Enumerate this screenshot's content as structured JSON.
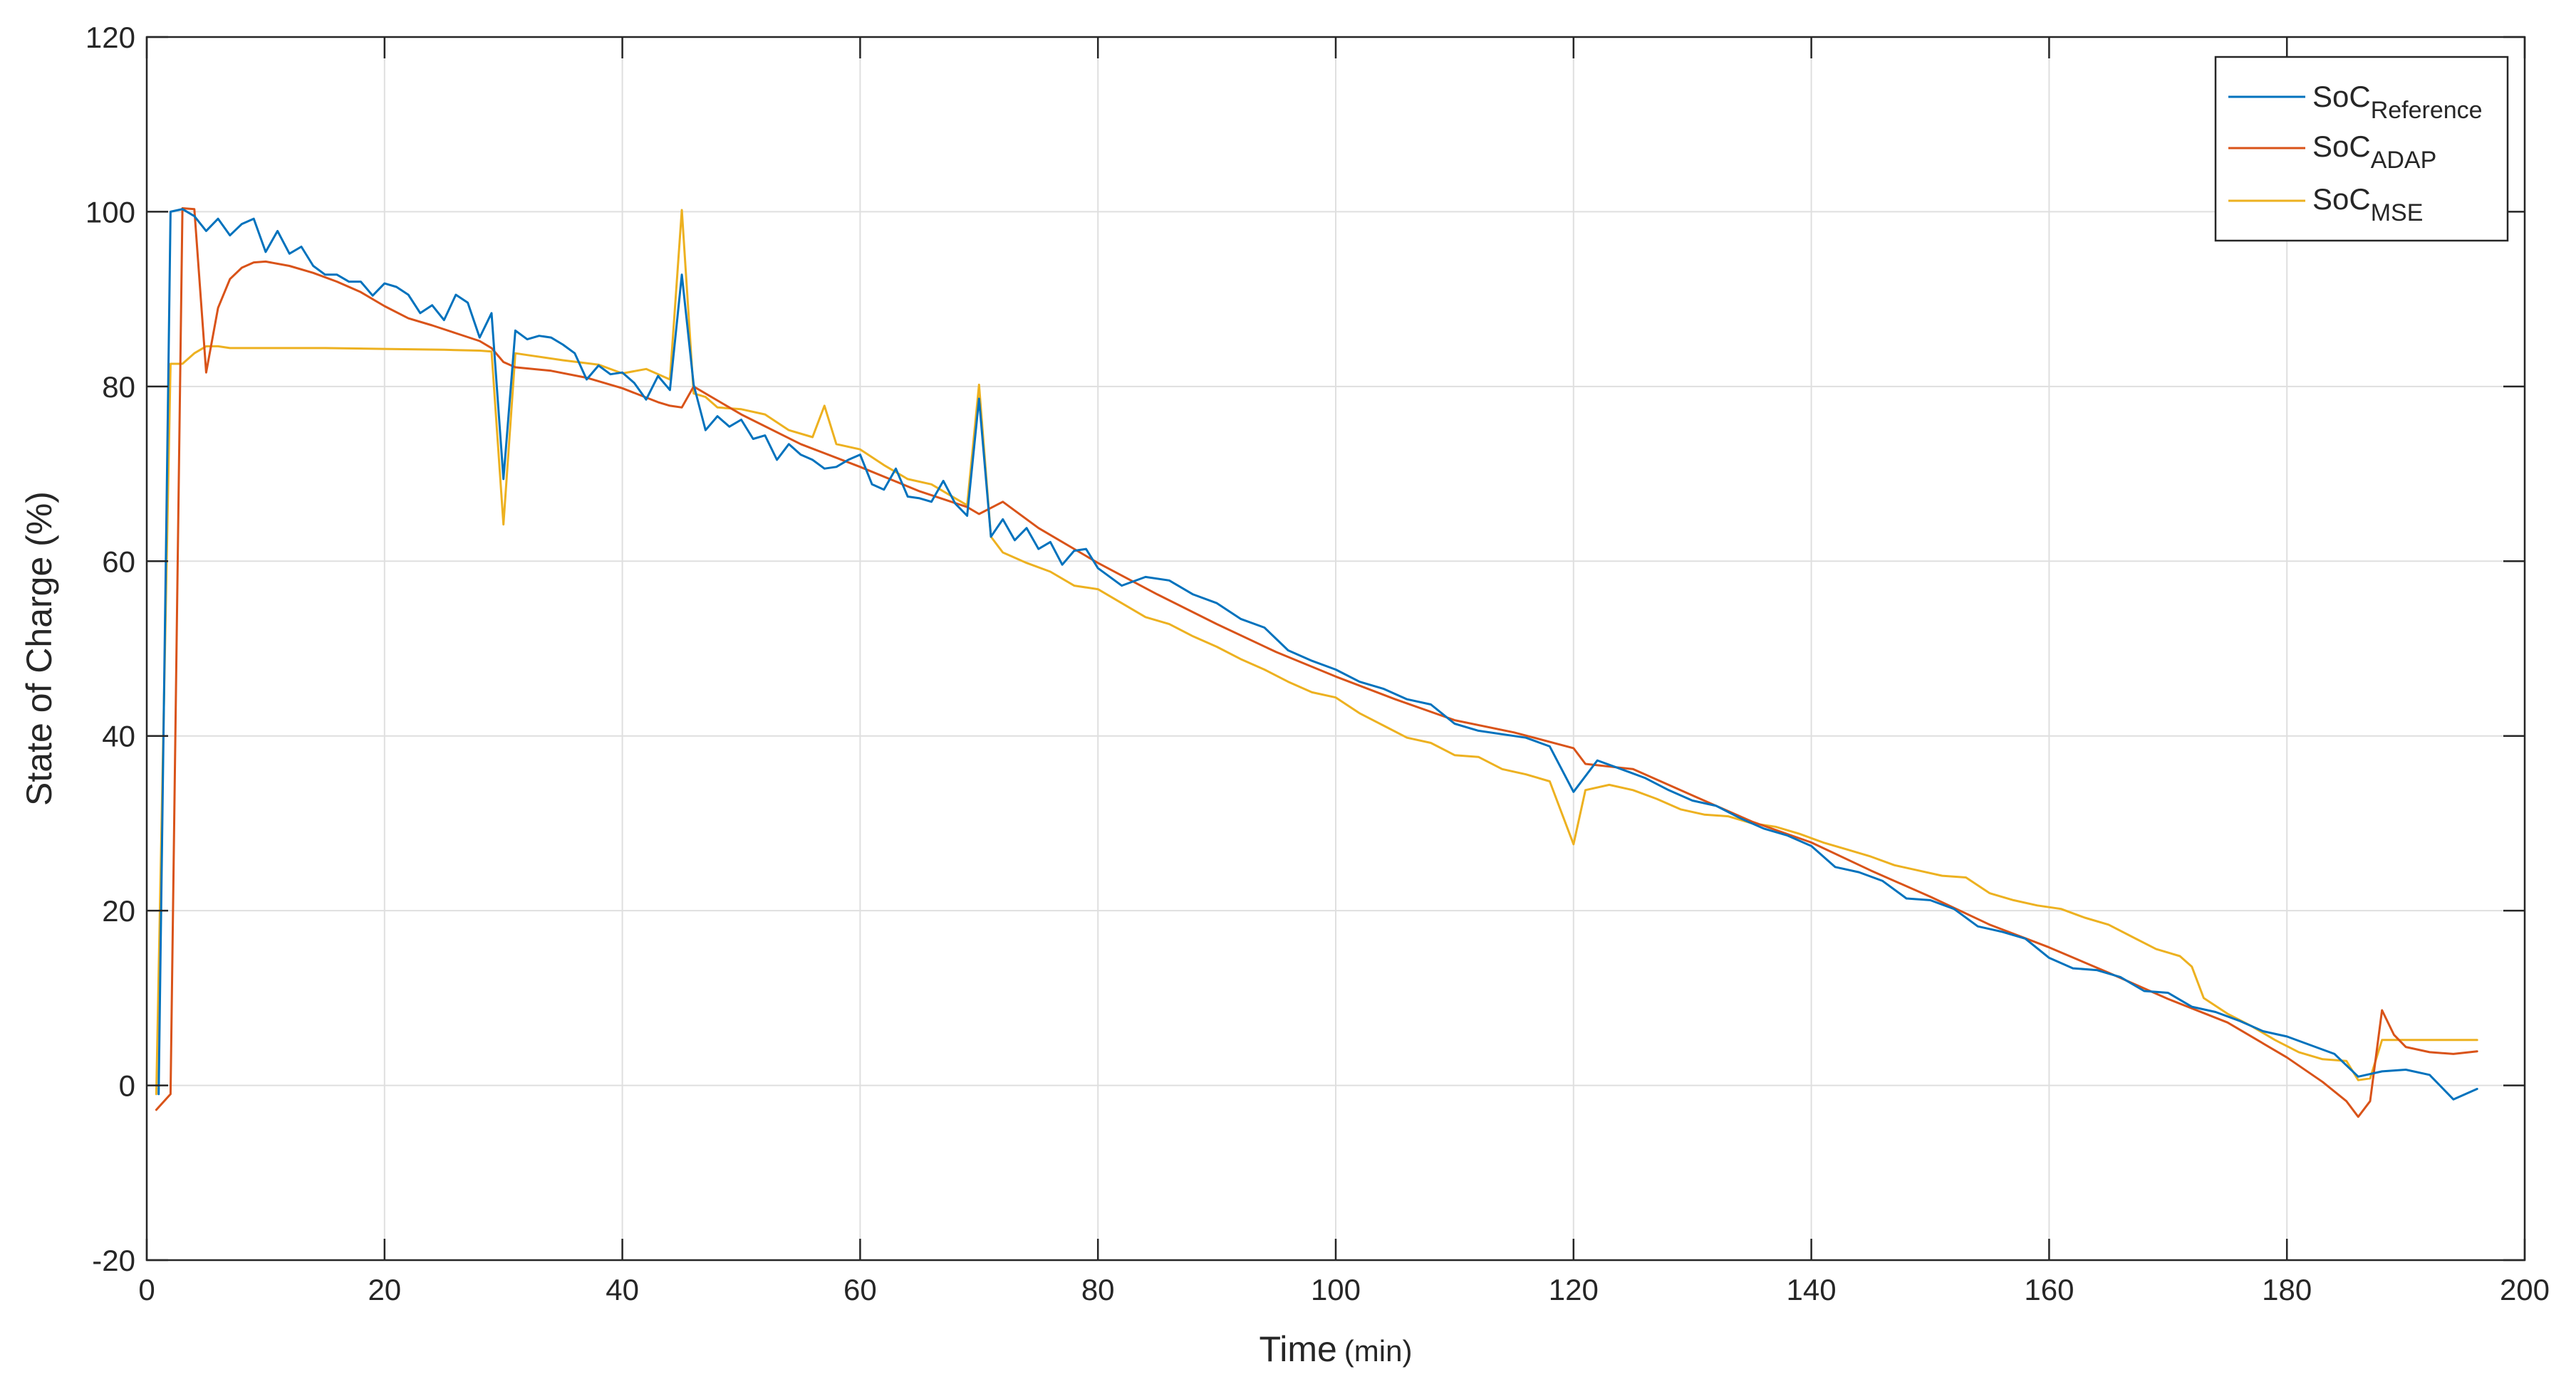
{
  "chart_data": {
    "type": "line",
    "xlabel": "Time",
    "xlabel_unit": "(min)",
    "ylabel": "State of Charge (%)",
    "xlim": [
      0,
      200
    ],
    "ylim": [
      -20,
      120
    ],
    "xticks": [
      0,
      20,
      40,
      60,
      80,
      100,
      120,
      140,
      160,
      180,
      200
    ],
    "yticks": [
      -20,
      0,
      20,
      40,
      60,
      80,
      100,
      120
    ],
    "grid": true,
    "legend_position": "top-right",
    "series": [
      {
        "name": "SoC",
        "subscript": "Reference",
        "color": "#0072BD",
        "x": [
          1,
          2,
          3,
          4,
          5,
          6,
          7,
          8,
          9,
          10,
          11,
          12,
          13,
          14,
          15,
          16,
          17,
          18,
          19,
          20,
          21,
          22,
          23,
          24,
          25,
          26,
          27,
          28,
          29,
          30,
          31,
          32,
          33,
          34,
          35,
          36,
          37,
          38,
          39,
          40,
          41,
          42,
          43,
          44,
          45,
          46,
          47,
          48,
          49,
          50,
          51,
          52,
          53,
          54,
          55,
          56,
          57,
          58,
          59,
          60,
          61,
          62,
          63,
          64,
          65,
          66,
          67,
          68,
          69,
          70,
          71,
          72,
          73,
          74,
          75,
          76,
          77,
          78,
          79,
          80,
          82,
          84,
          86,
          88,
          90,
          92,
          94,
          96,
          98,
          100,
          102,
          104,
          106,
          108,
          110,
          112,
          114,
          116,
          118,
          120,
          122,
          124,
          126,
          128,
          130,
          132,
          134,
          136,
          138,
          140,
          142,
          144,
          146,
          148,
          150,
          152,
          154,
          156,
          158,
          160,
          162,
          164,
          166,
          168,
          170,
          172,
          174,
          176,
          178,
          180,
          182,
          184,
          186,
          188,
          190,
          192,
          194,
          196
        ],
        "y": [
          -1,
          100,
          100.3,
          99.5,
          97.8,
          99.2,
          97.3,
          98.6,
          99.2,
          95.4,
          97.8,
          95.2,
          96,
          93.8,
          92.8,
          92.8,
          92,
          92,
          90.4,
          91.8,
          91.4,
          90.5,
          88.4,
          89.3,
          87.6,
          90.5,
          89.6,
          85.6,
          88.4,
          69.4,
          86.4,
          85.4,
          85.8,
          85.6,
          84.8,
          83.8,
          80.8,
          82.4,
          81.4,
          81.6,
          80.4,
          78.5,
          81.2,
          79.6,
          92.8,
          80.2,
          75,
          76.6,
          75.4,
          76.2,
          74,
          74.4,
          71.6,
          73.4,
          72.2,
          71.6,
          70.6,
          70.8,
          71.6,
          72.2,
          68.8,
          68.2,
          70.6,
          67.4,
          67.2,
          66.8,
          69.2,
          66.6,
          65.2,
          78.6,
          62.8,
          64.8,
          62.4,
          63.8,
          61.4,
          62.2,
          59.6,
          61.2,
          61.4,
          59.2,
          57.2,
          58.2,
          57.8,
          56.2,
          55.2,
          53.4,
          52.4,
          49.8,
          48.6,
          47.6,
          46.2,
          45.4,
          44.2,
          43.6,
          41.4,
          40.6,
          40.2,
          39.8,
          38.8,
          33.6,
          37.2,
          36.2,
          35.2,
          33.8,
          32.6,
          32,
          30.6,
          29.4,
          28.6,
          27.4,
          25,
          24.4,
          23.4,
          21.4,
          21.2,
          20.2,
          18.2,
          17.6,
          16.8,
          14.6,
          13.4,
          13.2,
          12.4,
          10.8,
          10.6,
          9,
          8.4,
          7.4,
          6.2,
          5.6,
          4.6,
          3.6,
          1,
          1.6,
          1.8,
          1.2,
          -1.6,
          -0.4
        ]
      },
      {
        "name": "SoC",
        "subscript": "ADAP",
        "color": "#D95319",
        "x": [
          0.8,
          2,
          3,
          4,
          5,
          6,
          7,
          8,
          9,
          10,
          12,
          14,
          16,
          18,
          20,
          22,
          24,
          26,
          28,
          29,
          30,
          31,
          34,
          37,
          40,
          43,
          44,
          45,
          46,
          50,
          55,
          60,
          65,
          69,
          70,
          72,
          75,
          80,
          85,
          90,
          95,
          100,
          105,
          110,
          115,
          120,
          121,
          125,
          130,
          135,
          140,
          145,
          150,
          155,
          160,
          165,
          170,
          175,
          180,
          183,
          185,
          186,
          187,
          188,
          189,
          190,
          192,
          194,
          196
        ],
        "y": [
          -2.8,
          -1,
          100.4,
          100.3,
          81.6,
          89,
          92.3,
          93.6,
          94.2,
          94.3,
          93.8,
          93,
          92,
          90.8,
          89.2,
          87.8,
          87,
          86.1,
          85.2,
          84.4,
          82.8,
          82.2,
          81.8,
          81,
          79.8,
          78.2,
          77.8,
          77.6,
          80,
          76.8,
          73.4,
          70.8,
          68,
          66.2,
          65.4,
          66.8,
          63.8,
          59.8,
          56.2,
          52.8,
          49.6,
          46.8,
          44.2,
          41.8,
          40.4,
          38.6,
          36.8,
          36.2,
          33.2,
          30.2,
          27.8,
          24.6,
          21.6,
          18.4,
          15.8,
          12.9,
          9.9,
          7.2,
          3.2,
          0.4,
          -1.8,
          -3.6,
          -1.8,
          8.6,
          5.8,
          4.4,
          3.8,
          3.6,
          3.9
        ]
      },
      {
        "name": "SoC",
        "subscript": "MSE",
        "color": "#EDB120",
        "x": [
          0.8,
          2,
          3,
          4,
          5,
          6,
          7,
          10,
          15,
          20,
          25,
          28,
          29,
          30,
          31,
          32,
          35,
          38,
          40,
          42,
          44,
          45,
          46,
          47,
          48,
          50,
          52,
          54,
          56,
          57,
          58,
          60,
          62,
          64,
          66,
          68,
          69,
          70,
          71,
          72,
          74,
          76,
          78,
          80,
          82,
          84,
          86,
          88,
          90,
          92,
          94,
          96,
          98,
          100,
          102,
          104,
          106,
          108,
          110,
          112,
          114,
          116,
          118,
          120,
          121,
          123,
          125,
          127,
          129,
          131,
          133,
          135,
          137,
          139,
          141,
          143,
          145,
          147,
          149,
          151,
          153,
          155,
          157,
          159,
          161,
          163,
          165,
          167,
          169,
          171,
          172,
          173,
          175,
          177,
          179,
          181,
          183,
          185,
          186,
          187,
          188,
          190,
          192,
          194,
          196
        ],
        "y": [
          -1,
          82.6,
          82.6,
          83.8,
          84.6,
          84.6,
          84.4,
          84.4,
          84.4,
          84.3,
          84.2,
          84.1,
          84,
          64.2,
          83.8,
          83.6,
          83,
          82.5,
          81.5,
          82,
          80.8,
          100.2,
          79.2,
          78.8,
          77.6,
          77.4,
          76.8,
          75,
          74.2,
          77.8,
          73.4,
          72.8,
          71,
          69.4,
          68.8,
          67.2,
          66.4,
          80.2,
          62.8,
          61,
          59.8,
          58.8,
          57.2,
          56.8,
          55.2,
          53.6,
          52.8,
          51.4,
          50.2,
          48.8,
          47.6,
          46.2,
          45,
          44.4,
          42.6,
          41.2,
          39.8,
          39.2,
          37.8,
          37.6,
          36.2,
          35.6,
          34.8,
          27.6,
          33.8,
          34.4,
          33.8,
          32.8,
          31.6,
          31,
          30.8,
          30,
          29.6,
          28.8,
          27.8,
          27,
          26.2,
          25.2,
          24.6,
          24,
          23.8,
          22,
          21.2,
          20.6,
          20.2,
          19.2,
          18.4,
          17,
          15.6,
          14.8,
          13.6,
          10,
          8.2,
          6.8,
          5.2,
          3.8,
          3,
          2.8,
          0.6,
          0.8,
          5.2,
          5.2,
          5.2,
          5.2,
          5.2
        ]
      }
    ]
  }
}
